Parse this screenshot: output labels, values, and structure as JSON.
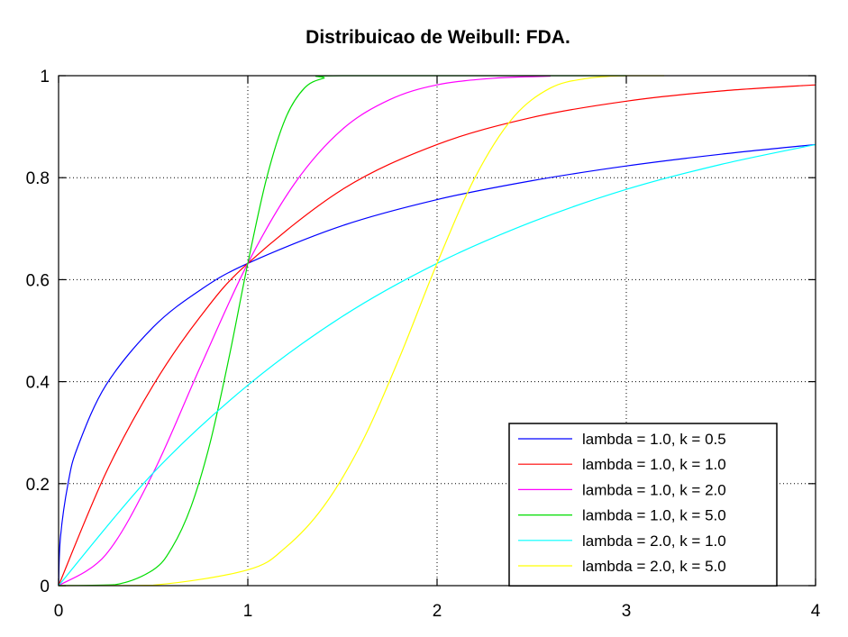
{
  "chart_data": {
    "type": "line",
    "title": "Distribuicao de Weibull: FDA.",
    "xlabel": "",
    "ylabel": "",
    "xlim": [
      0,
      4
    ],
    "ylim": [
      0,
      1
    ],
    "x_ticks": [
      "0",
      "1",
      "2",
      "3",
      "4"
    ],
    "y_ticks": [
      "0",
      "0.2",
      "0.4",
      "0.6",
      "0.8",
      "1"
    ],
    "grid": true,
    "legend_position": "bottom-right",
    "series": [
      {
        "name": "lambda = 1.0, k = 0.5",
        "color": "#0000ff",
        "x": [
          0,
          0.01,
          0.05,
          0.1,
          0.25,
          0.5,
          0.75,
          1.0,
          1.5,
          2.0,
          2.5,
          3.0,
          3.5,
          4.0
        ],
        "y": [
          0,
          0.095,
          0.2,
          0.271,
          0.393,
          0.507,
          0.58,
          0.632,
          0.706,
          0.757,
          0.794,
          0.823,
          0.846,
          0.865
        ]
      },
      {
        "name": "lambda = 1.0, k = 1.0",
        "color": "#ff0000",
        "x": [
          0,
          0.25,
          0.5,
          0.75,
          1.0,
          1.5,
          2.0,
          2.5,
          3.0,
          3.5,
          4.0
        ],
        "y": [
          0,
          0.221,
          0.393,
          0.528,
          0.632,
          0.777,
          0.865,
          0.918,
          0.95,
          0.97,
          0.982
        ]
      },
      {
        "name": "lambda = 1.0, k = 2.0",
        "color": "#ff00ff",
        "x": [
          0,
          0.25,
          0.5,
          0.75,
          1.0,
          1.25,
          1.5,
          1.75,
          2.0,
          2.3,
          2.6
        ],
        "y": [
          0,
          0.061,
          0.221,
          0.43,
          0.632,
          0.79,
          0.895,
          0.953,
          0.982,
          0.995,
          0.999
        ]
      },
      {
        "name": "lambda = 1.0, k = 5.0",
        "color": "#00dd00",
        "x": [
          0,
          0.3,
          0.5,
          0.6,
          0.7,
          0.8,
          0.9,
          1.0,
          1.1,
          1.2,
          1.3,
          1.4,
          1.5,
          3.0
        ],
        "y": [
          0,
          0.002,
          0.031,
          0.075,
          0.155,
          0.279,
          0.446,
          0.632,
          0.8,
          0.917,
          0.976,
          0.995,
          1.0,
          1.0
        ]
      },
      {
        "name": "lambda = 2.0, k = 1.0",
        "color": "#00ffff",
        "x": [
          0,
          0.5,
          1.0,
          1.5,
          2.0,
          2.5,
          3.0,
          3.5,
          4.0
        ],
        "y": [
          0,
          0.221,
          0.393,
          0.528,
          0.632,
          0.713,
          0.777,
          0.826,
          0.865
        ]
      },
      {
        "name": "lambda = 2.0, k = 5.0",
        "color": "#ffff00",
        "x": [
          0,
          0.5,
          1.0,
          1.2,
          1.4,
          1.6,
          1.8,
          2.0,
          2.2,
          2.4,
          2.6,
          2.8,
          3.0,
          3.2
        ],
        "y": [
          0,
          0.001,
          0.031,
          0.075,
          0.155,
          0.279,
          0.446,
          0.632,
          0.8,
          0.917,
          0.976,
          0.995,
          1.0,
          1.0
        ]
      }
    ]
  }
}
